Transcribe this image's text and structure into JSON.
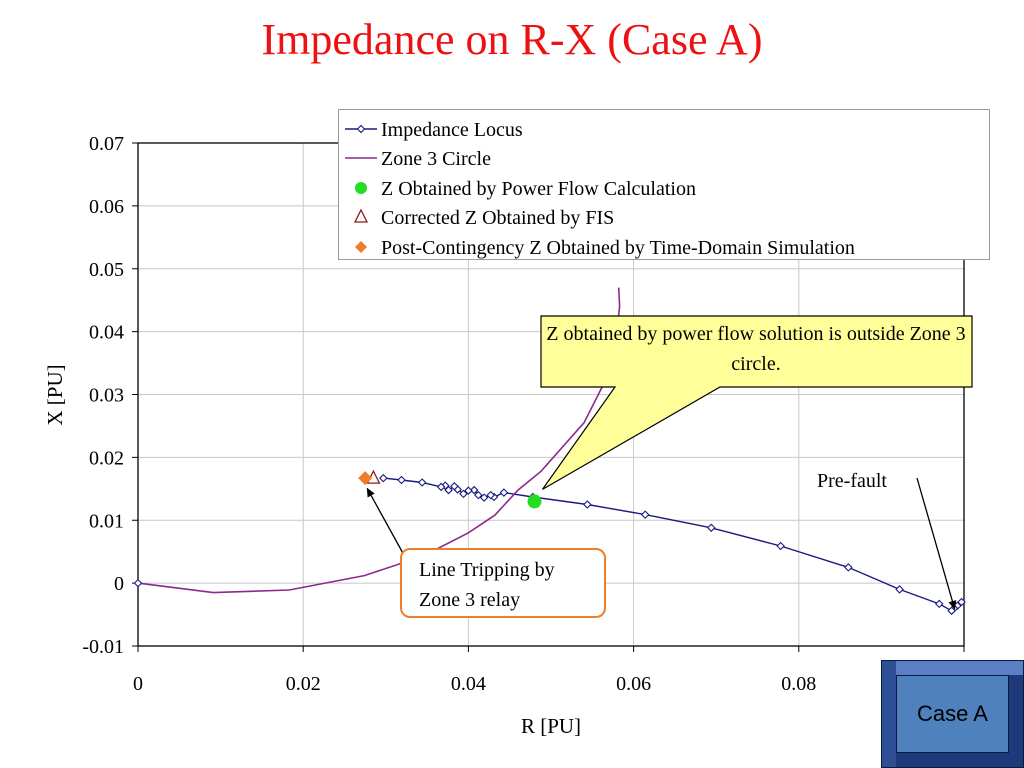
{
  "slide": {
    "title": "Impedance on R-X (Case A)"
  },
  "colors": {
    "title": "#ee1111",
    "locus": "#1a1a80",
    "zone3": "#8b2a8b",
    "power_flow": "#22dd22",
    "fis": "#8b1a1a",
    "post_contingency": "#f07e26",
    "callout_fill": "#ffff99",
    "trip_box_border": "#f07e26",
    "case_button": "#4f81bd"
  },
  "chart_data": {
    "type": "scatter",
    "xlabel": "R [PU]",
    "ylabel": "X [PU]",
    "xlim": [
      0,
      0.1
    ],
    "ylim": [
      -0.01,
      0.07
    ],
    "xticks": [
      "0",
      "0.02",
      "0.04",
      "0.06",
      "0.08"
    ],
    "yticks": [
      "0.07",
      "0.06",
      "0.05",
      "0.04",
      "0.03",
      "0.02",
      "0.01",
      "0",
      "-0.01"
    ],
    "grid": true,
    "legend_position": "top-right",
    "series": [
      {
        "name": "Impedance Locus",
        "style": "line-diamond",
        "points": [
          [
            0.0997,
            -0.003
          ],
          [
            0.0992,
            -0.0036
          ],
          [
            0.0988,
            -0.004
          ],
          [
            0.0985,
            -0.0044
          ],
          [
            0.097,
            -0.0033
          ],
          [
            0.0922,
            -0.001
          ],
          [
            0.086,
            0.0025
          ],
          [
            0.0778,
            0.0059
          ],
          [
            0.0694,
            0.0088
          ],
          [
            0.0614,
            0.0109
          ],
          [
            0.0544,
            0.0125
          ],
          [
            0.0478,
            0.0137
          ],
          [
            0.0443,
            0.0144
          ],
          [
            0.0431,
            0.0137
          ],
          [
            0.0427,
            0.014
          ],
          [
            0.0419,
            0.0136
          ],
          [
            0.0412,
            0.014
          ],
          [
            0.0407,
            0.0148
          ],
          [
            0.04,
            0.0147
          ],
          [
            0.0394,
            0.0142
          ],
          [
            0.0387,
            0.0149
          ],
          [
            0.0383,
            0.0154
          ],
          [
            0.0376,
            0.0148
          ],
          [
            0.0372,
            0.0155
          ],
          [
            0.0367,
            0.0153
          ],
          [
            0.0344,
            0.016
          ],
          [
            0.0319,
            0.0164
          ],
          [
            0.0297,
            0.0167
          ]
        ]
      },
      {
        "name": "Zone 3 Circle",
        "style": "line",
        "points": [
          [
            0.0,
            0.0
          ],
          [
            0.0091,
            -0.0015
          ],
          [
            0.0183,
            -0.0011
          ],
          [
            0.0274,
            0.0012
          ],
          [
            0.0345,
            0.0043
          ],
          [
            0.04,
            0.008
          ],
          [
            0.0432,
            0.0108
          ],
          [
            0.046,
            0.0148
          ],
          [
            0.0488,
            0.0178
          ],
          [
            0.054,
            0.0255
          ],
          [
            0.0565,
            0.032
          ],
          [
            0.0578,
            0.038
          ],
          [
            0.0583,
            0.044
          ],
          [
            0.0582,
            0.047
          ]
        ]
      },
      {
        "name": "Z Obtained by Power Flow Calculation",
        "style": "circle",
        "points": [
          [
            0.048,
            0.013
          ]
        ]
      },
      {
        "name": "Corrected Z Obtained by FIS",
        "style": "triangle",
        "points": [
          [
            0.0285,
            0.0167
          ]
        ]
      },
      {
        "name": "Post-Contingency Z Obtained by Time-Domain Simulation",
        "style": "diamond",
        "points": [
          [
            0.0275,
            0.0167
          ]
        ]
      }
    ],
    "annotations": [
      {
        "text": "Z obtained by power flow solution is outside Zone 3 circle.",
        "points_to": [
          0.048,
          0.013
        ]
      },
      {
        "text": "Pre-fault",
        "points_to": [
          0.0985,
          -0.0044
        ]
      },
      {
        "text": "Line Tripping by Zone 3 relay",
        "points_to": [
          0.028,
          0.016
        ]
      }
    ]
  },
  "callout": {
    "text": "Z obtained by power flow solution is outside Zone 3 circle."
  },
  "labels": {
    "prefault": "Pre-fault",
    "trip_line1": "Line Tripping by",
    "trip_line2": "Zone 3 relay"
  },
  "case_button": {
    "label": "Case A"
  }
}
